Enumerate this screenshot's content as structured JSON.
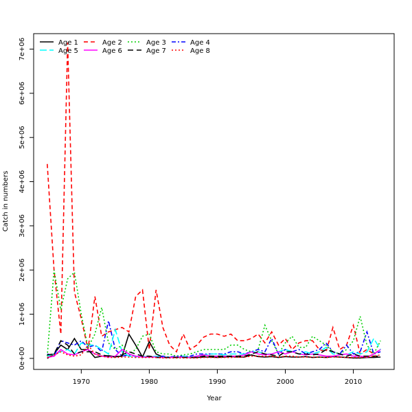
{
  "chart_data": {
    "type": "line",
    "title": "",
    "xlabel": "Year",
    "ylabel": "Catch in numbers",
    "xlim": [
      1963,
      2016
    ],
    "ylim": [
      -250000,
      7350000
    ],
    "x_ticks": [
      1970,
      1980,
      1990,
      2000,
      2010
    ],
    "y_ticks": [
      0,
      1000000,
      2000000,
      3000000,
      4000000,
      5000000,
      6000000,
      7000000
    ],
    "y_tick_labels": [
      "0e+00",
      "1e+06",
      "2e+06",
      "3e+06",
      "4e+06",
      "5e+06",
      "6e+06",
      "7e+06"
    ],
    "legend_placement": "top-left",
    "grid": false,
    "x": [
      1965,
      1966,
      1967,
      1968,
      1969,
      1970,
      1971,
      1972,
      1973,
      1974,
      1975,
      1976,
      1977,
      1978,
      1979,
      1980,
      1981,
      1982,
      1983,
      1984,
      1985,
      1986,
      1987,
      1988,
      1989,
      1990,
      1991,
      1992,
      1993,
      1994,
      1995,
      1996,
      1997,
      1998,
      1999,
      2000,
      2001,
      2002,
      2003,
      2004,
      2005,
      2006,
      2007,
      2008,
      2009,
      2010,
      2011,
      2012,
      2013,
      2014
    ],
    "series": [
      {
        "name": "Age 1",
        "color": "#000000",
        "dash": "solid",
        "values": [
          0,
          100000,
          300000,
          200000,
          450000,
          200000,
          200000,
          20000,
          50000,
          60000,
          40000,
          50000,
          550000,
          300000,
          30000,
          380000,
          100000,
          30000,
          20000,
          30000,
          30000,
          20000,
          20000,
          30000,
          30000,
          20000,
          30000,
          40000,
          30000,
          30000,
          80000,
          40000,
          30000,
          40000,
          20000,
          40000,
          30000,
          30000,
          40000,
          20000,
          30000,
          20000,
          40000,
          30000,
          20000,
          10000,
          10000,
          20000,
          20000,
          30000
        ]
      },
      {
        "name": "Age 2",
        "color": "#ff0000",
        "dash": "6,4",
        "values": [
          4400000,
          2000000,
          550000,
          7150000,
          1500000,
          900000,
          200000,
          1400000,
          500000,
          600000,
          650000,
          700000,
          600000,
          1400000,
          1550000,
          200000,
          1550000,
          700000,
          300000,
          150000,
          550000,
          200000,
          300000,
          480000,
          550000,
          550000,
          500000,
          550000,
          400000,
          400000,
          450000,
          550000,
          350000,
          600000,
          300000,
          450000,
          200000,
          350000,
          400000,
          400000,
          200000,
          150000,
          700000,
          200000,
          300000,
          750000,
          100000,
          200000,
          100000,
          200000
        ]
      },
      {
        "name": "Age 3",
        "color": "#00cd00",
        "dash": "2,3",
        "values": [
          50000,
          2000000,
          1100000,
          1800000,
          1950000,
          1000000,
          250000,
          550000,
          1150000,
          350000,
          200000,
          300000,
          100000,
          200000,
          500000,
          550000,
          150000,
          100000,
          100000,
          50000,
          80000,
          100000,
          150000,
          200000,
          200000,
          200000,
          200000,
          300000,
          300000,
          200000,
          150000,
          200000,
          750000,
          400000,
          100000,
          350000,
          500000,
          250000,
          250000,
          500000,
          400000,
          300000,
          150000,
          100000,
          200000,
          400000,
          950000,
          300000,
          100000,
          400000
        ]
      },
      {
        "name": "Age 4",
        "color": "#0000ff",
        "dash": "6,3,2,3",
        "values": [
          100000,
          50000,
          400000,
          350000,
          300000,
          400000,
          250000,
          300000,
          150000,
          850000,
          200000,
          50000,
          80000,
          50000,
          30000,
          30000,
          40000,
          50000,
          30000,
          50000,
          50000,
          50000,
          100000,
          100000,
          100000,
          100000,
          100000,
          150000,
          150000,
          100000,
          150000,
          200000,
          150000,
          450000,
          100000,
          200000,
          150000,
          200000,
          100000,
          150000,
          200000,
          350000,
          150000,
          100000,
          300000,
          100000,
          150000,
          600000,
          100000,
          150000
        ]
      },
      {
        "name": "Age 5",
        "color": "#00ffff",
        "dash": "10,4",
        "values": [
          50000,
          100000,
          150000,
          200000,
          100000,
          350000,
          300000,
          300000,
          200000,
          100000,
          650000,
          150000,
          50000,
          30000,
          50000,
          30000,
          50000,
          30000,
          30000,
          30000,
          50000,
          30000,
          50000,
          80000,
          100000,
          100000,
          80000,
          100000,
          100000,
          100000,
          150000,
          150000,
          100000,
          100000,
          150000,
          200000,
          150000,
          100000,
          150000,
          100000,
          150000,
          250000,
          100000,
          100000,
          80000,
          150000,
          100000,
          150000,
          450000,
          200000
        ]
      },
      {
        "name": "Age 6",
        "color": "#ff00ff",
        "dash": "solid",
        "values": [
          20000,
          50000,
          200000,
          100000,
          80000,
          150000,
          200000,
          100000,
          50000,
          30000,
          50000,
          200000,
          100000,
          50000,
          30000,
          30000,
          30000,
          20000,
          20000,
          30000,
          30000,
          20000,
          50000,
          80000,
          50000,
          50000,
          50000,
          50000,
          50000,
          80000,
          150000,
          100000,
          80000,
          100000,
          150000,
          100000,
          150000,
          100000,
          80000,
          100000,
          80000,
          50000,
          50000,
          80000,
          100000,
          50000,
          50000,
          30000,
          100000,
          200000
        ]
      },
      {
        "name": "Age 7",
        "color": "#000000",
        "dash": "8,5",
        "values": [
          80000,
          100000,
          400000,
          300000,
          100000,
          150000,
          150000,
          150000,
          80000,
          50000,
          30000,
          80000,
          150000,
          100000,
          50000,
          50000,
          20000,
          20000,
          20000,
          20000,
          20000,
          20000,
          20000,
          50000,
          50000,
          50000,
          50000,
          50000,
          50000,
          50000,
          100000,
          150000,
          100000,
          80000,
          50000,
          150000,
          150000,
          100000,
          100000,
          80000,
          100000,
          200000,
          150000,
          100000,
          50000,
          100000,
          50000,
          50000,
          50000,
          50000
        ]
      },
      {
        "name": "Age 8",
        "color": "#ff0000",
        "dash": "2,3",
        "values": [
          20000,
          80000,
          150000,
          80000,
          50000,
          80000,
          300000,
          100000,
          50000,
          20000,
          20000,
          30000,
          30000,
          20000,
          20000,
          20000,
          20000,
          10000,
          10000,
          10000,
          10000,
          10000,
          10000,
          20000,
          20000,
          20000,
          20000,
          20000,
          30000,
          30000,
          50000,
          50000,
          50000,
          50000,
          30000,
          50000,
          50000,
          30000,
          30000,
          30000,
          30000,
          20000,
          30000,
          30000,
          20000,
          20000,
          20000,
          30000,
          50000,
          80000
        ]
      }
    ]
  }
}
